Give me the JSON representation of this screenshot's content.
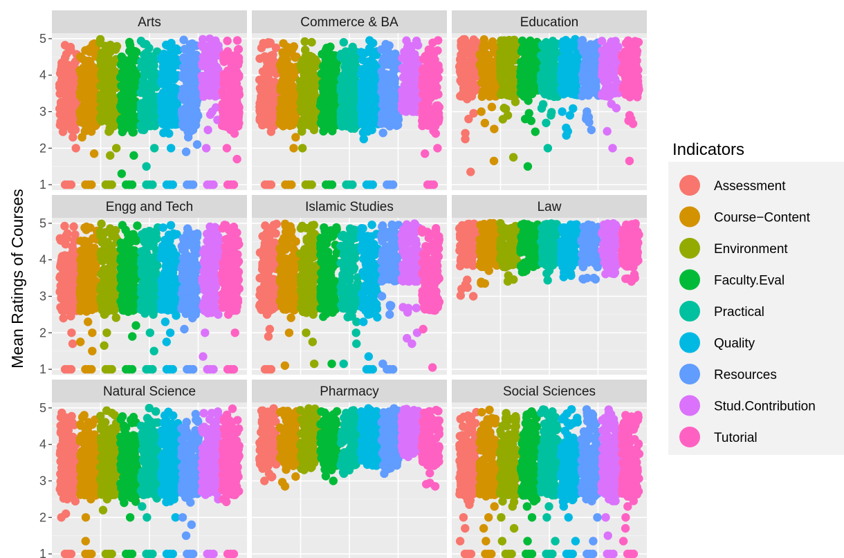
{
  "chart_data": {
    "type": "scatter",
    "subtype": "jittered strip plot, faceted 3x3",
    "ylabel": "Mean Ratings of Courses",
    "xlabel": "",
    "ylim": [
      0.85,
      5.15
    ],
    "yticks": [
      1,
      2,
      3,
      4,
      5
    ],
    "grid": true,
    "legend": {
      "title": "Indicators",
      "position": "right",
      "entries": [
        {
          "name": "Assessment",
          "color": "#F8766D"
        },
        {
          "name": "Course−Content",
          "color": "#D39200"
        },
        {
          "name": "Environment",
          "color": "#93AA00"
        },
        {
          "name": "Faculty.Eval",
          "color": "#00BA38"
        },
        {
          "name": "Practical",
          "color": "#00C19F"
        },
        {
          "name": "Quality",
          "color": "#00B9E3"
        },
        {
          "name": "Resources",
          "color": "#619CFF"
        },
        {
          "name": "Stud.Contribution",
          "color": "#DB72FB"
        },
        {
          "name": "Tutorial",
          "color": "#FF61C3"
        }
      ]
    },
    "facets": [
      {
        "name": "Arts",
        "density": [
          5,
          5,
          4,
          5,
          4,
          4,
          4,
          3,
          4
        ],
        "mins": [
          1,
          1,
          1,
          1,
          1,
          1,
          1,
          1,
          1
        ],
        "outliers": [
          [
            2,
            2.3,
            2.5,
            2.7,
            2.9
          ],
          [
            1.85,
            2.3,
            2.6,
            2.9
          ],
          [
            1.8,
            2,
            2.6
          ],
          [
            1.3,
            1.8,
            2.5,
            2.8
          ],
          [
            1.5,
            2,
            2.5,
            3
          ],
          [
            2,
            2.4
          ],
          [
            1.9,
            2.1,
            2.3,
            2.5
          ],
          [
            2,
            2.5,
            3
          ],
          [
            1.7,
            2,
            2.4,
            2.6
          ]
        ]
      },
      {
        "name": "Commerce & BA",
        "density": [
          5,
          5,
          5,
          5,
          5,
          5,
          5,
          4,
          5
        ],
        "mins": [
          1,
          1,
          1,
          1,
          1,
          1,
          1,
          3,
          1
        ],
        "outliers": [
          [
            2.45,
            3
          ],
          [
            2,
            2.3,
            2.65
          ],
          [
            2,
            2.5
          ],
          [
            2.7
          ],
          [
            2.8
          ],
          [
            2.25,
            2.5
          ],
          [
            3
          ],
          [
            3
          ],
          [
            1.85,
            2,
            2.4
          ]
        ]
      },
      {
        "name": "Education",
        "density": [
          3,
          3,
          3,
          3,
          3,
          3,
          3,
          3,
          3
        ],
        "mins": [
          1.35,
          1.65,
          1.75,
          1.5,
          2,
          2.35,
          2.5,
          2,
          1.65
        ],
        "outliers": [
          [
            2.25,
            2.8
          ],
          [
            3
          ],
          [
            2.9,
            3.1
          ],
          [
            2.45,
            3.3
          ],
          [
            2.9,
            3.2
          ],
          [
            2.9,
            3
          ],
          [
            2.8,
            3
          ],
          [
            3.5,
            3.6
          ],
          [
            2.8,
            3.4
          ]
        ]
      },
      {
        "name": "Engg and Tech",
        "density": [
          5,
          5,
          5,
          5,
          5,
          5,
          5,
          4,
          5
        ],
        "mins": [
          1,
          1,
          1,
          1,
          1,
          1,
          1,
          1,
          1
        ],
        "outliers": [
          [
            1.7,
            2,
            2.4
          ],
          [
            1.5,
            1.75,
            2,
            2.3
          ],
          [
            1.65,
            2,
            2.5
          ],
          [
            1.9,
            2.2
          ],
          [
            1.5,
            2,
            2.5
          ],
          [
            1.75,
            2,
            2.3
          ],
          [
            2.1,
            2.5
          ],
          [
            1.35,
            2,
            2.5
          ],
          [
            2,
            2.5
          ]
        ]
      },
      {
        "name": "Islamic Studies",
        "density": [
          4,
          4,
          4,
          4,
          4,
          4,
          3,
          3,
          4
        ],
        "mins": [
          1,
          1.1,
          1.15,
          1.15,
          1.15,
          1,
          1,
          1.7,
          1.05
        ],
        "outliers": [
          [
            1.9,
            2.1,
            2.5,
            2.9
          ],
          [
            2,
            2.7,
            3
          ],
          [
            1.75,
            2,
            2.5
          ],
          [
            2.6,
            2.8,
            3
          ],
          [
            1.7,
            2,
            2.3
          ],
          [
            1.35,
            2.3,
            2.5
          ],
          [
            1.15,
            2.5,
            3
          ],
          [
            1.85,
            2,
            2.7
          ],
          [
            2.1,
            2.7,
            3
          ]
        ]
      },
      {
        "name": "Law",
        "density": [
          2,
          2,
          2,
          2,
          2,
          2,
          2,
          2,
          2
        ],
        "mins": [
          3,
          3.35,
          3.8,
          3.8,
          3.85,
          3.65,
          3.5,
          3.65,
          3.5
        ],
        "outliers": [
          [
            3.2,
            3.45
          ],
          [
            3.7
          ],
          [],
          [],
          [],
          [],
          [
            3.5
          ],
          [],
          [
            3.6
          ]
        ]
      },
      {
        "name": "Natural Science",
        "density": [
          5,
          5,
          5,
          5,
          5,
          5,
          5,
          4,
          5
        ],
        "mins": [
          1,
          1,
          1,
          1,
          1,
          1,
          1,
          1,
          1
        ],
        "outliers": [
          [
            2,
            2.1,
            2.5
          ],
          [
            1.35,
            2,
            2.5
          ],
          [
            2.2,
            2.5
          ],
          [
            2,
            2.4
          ],
          [
            2,
            2.3
          ],
          [
            2,
            2.5
          ],
          [
            1.5,
            1.8,
            2
          ],
          [
            2.5,
            2.8
          ],
          [
            2.5,
            2.8
          ]
        ]
      },
      {
        "name": "Pharmacy",
        "density": [
          3,
          3,
          3,
          3,
          3,
          3,
          3,
          3,
          3
        ],
        "mins": [
          3,
          2.85,
          3.3,
          3,
          3.2,
          3.45,
          3.2,
          3.8,
          2.85
        ],
        "outliers": [
          [
            3.2,
            3.4
          ],
          [
            3.5,
            3.6
          ],
          [
            3.5,
            3.6
          ],
          [
            3.7
          ],
          [
            3.5,
            3.7
          ],
          [
            3.6
          ],
          [
            3.5
          ],
          [],
          [
            3.5,
            3.6
          ]
        ]
      },
      {
        "name": "Social Sciences",
        "density": [
          5,
          5,
          5,
          5,
          5,
          5,
          5,
          4,
          5
        ],
        "mins": [
          1,
          1,
          1,
          1,
          1,
          1,
          1,
          1,
          1
        ],
        "outliers": [
          [
            1.35,
            1.7,
            2,
            2.35,
            2.65
          ],
          [
            1.35,
            1.7,
            2,
            2.3,
            2.65
          ],
          [
            1.35,
            1.7,
            2,
            2.3
          ],
          [
            1.35,
            2,
            2.3
          ],
          [
            1.35,
            2,
            2.3
          ],
          [
            1.35,
            2,
            2.3
          ],
          [
            1.35,
            2,
            2.5
          ],
          [
            1.5,
            2,
            2.5
          ],
          [
            1.35,
            1.7,
            2,
            2.3
          ]
        ]
      }
    ]
  }
}
